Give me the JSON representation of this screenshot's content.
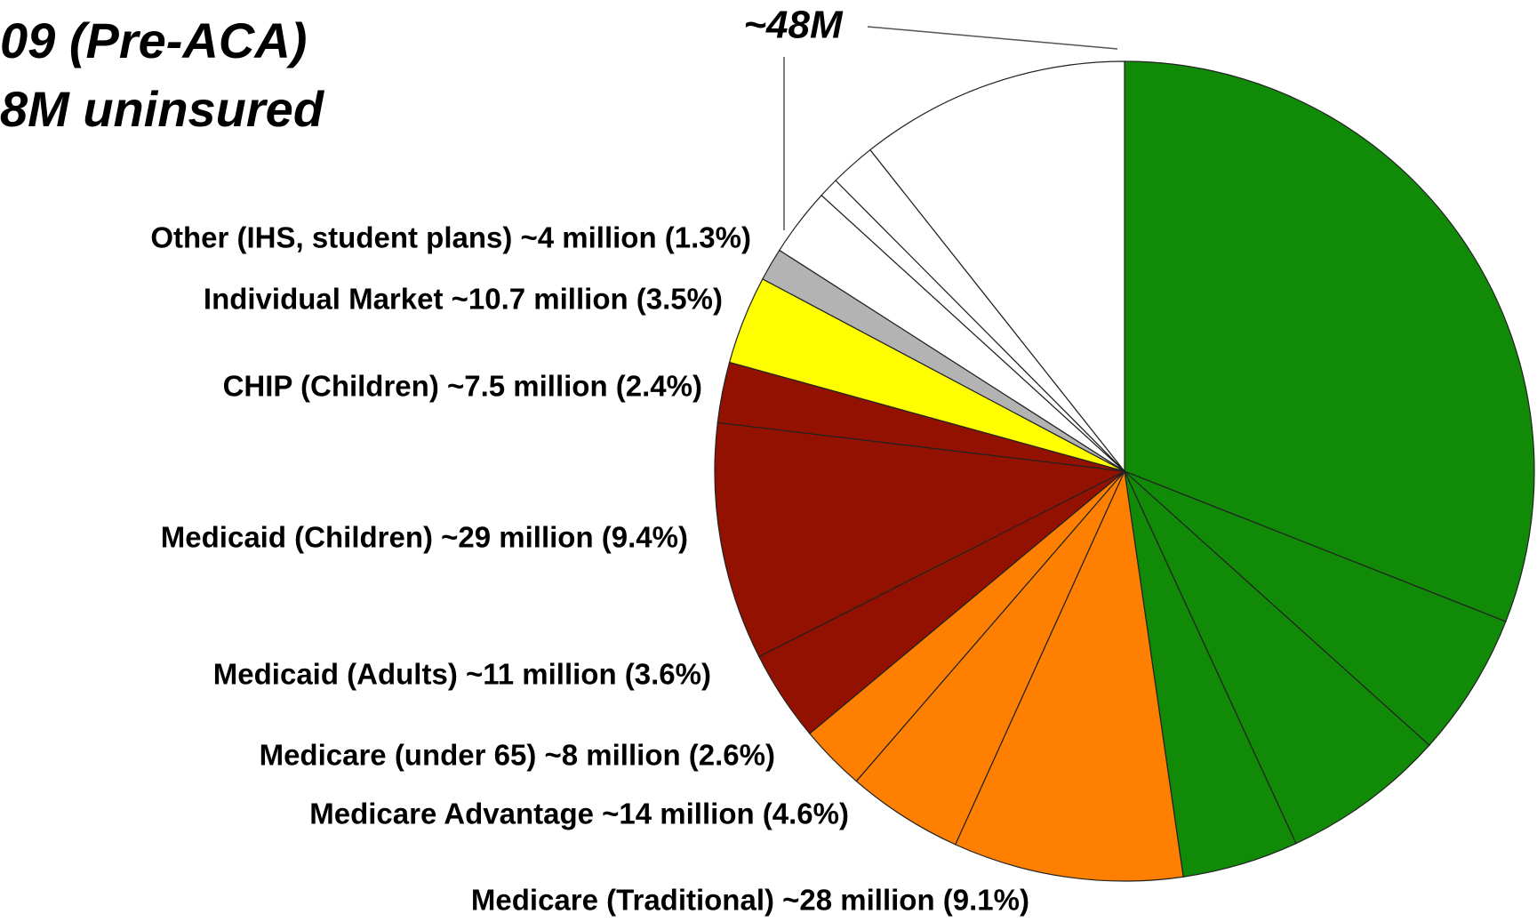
{
  "chart_data": {
    "type": "pie",
    "title_lines": [
      "09 (Pre-ACA)",
      "8M uninsured"
    ],
    "annotation": "~48M",
    "categories": [
      null,
      null,
      null,
      null,
      "Medicare (Traditional) ~28 million (9.1%)",
      "Medicare Advantage ~14 million (4.6%)",
      "Medicare (under 65) ~8 million (2.6%)",
      "Medicaid (Adults) ~11 million (3.6%)",
      "Medicaid (Children) ~29 million (9.4%)",
      "CHIP (Children) ~7.5 million (2.4%)",
      "Individual Market ~10.7 million (3.5%)",
      "Other (IHS, student plans) ~4 million (1.3%)",
      null,
      null,
      null,
      null
    ],
    "values": [
      31.1,
      5.7,
      6.5,
      4.6,
      9.1,
      4.6,
      2.6,
      3.6,
      9.4,
      2.4,
      3.5,
      1.3,
      2.7,
      0.8,
      1.8,
      10.7
    ],
    "colors": [
      "#118a07",
      "#118a07",
      "#118a07",
      "#118a07",
      "#ff7f00",
      "#ff7f00",
      "#ff7f00",
      "#921100",
      "#921100",
      "#921100",
      "#ffff00",
      "#b3b3b3",
      "#ffffff",
      "#ffffff",
      "#ffffff",
      "#ffffff"
    ]
  }
}
